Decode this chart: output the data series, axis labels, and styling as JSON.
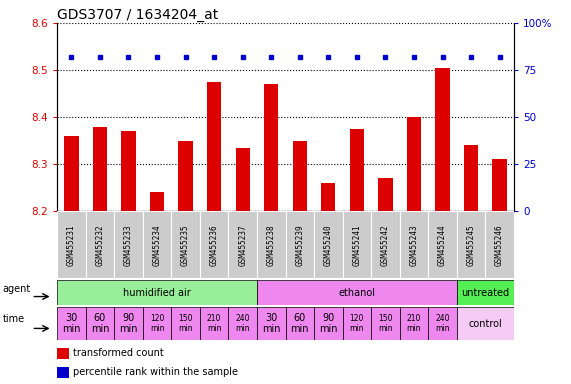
{
  "title": "GDS3707 / 1634204_at",
  "samples": [
    "GSM455231",
    "GSM455232",
    "GSM455233",
    "GSM455234",
    "GSM455235",
    "GSM455236",
    "GSM455237",
    "GSM455238",
    "GSM455239",
    "GSM455240",
    "GSM455241",
    "GSM455242",
    "GSM455243",
    "GSM455244",
    "GSM455245",
    "GSM455246"
  ],
  "bar_values": [
    8.36,
    8.38,
    8.37,
    8.24,
    8.35,
    8.475,
    8.335,
    8.47,
    8.35,
    8.26,
    8.375,
    8.27,
    8.4,
    8.505,
    8.34,
    8.31
  ],
  "percentile_values": [
    82,
    82,
    82,
    82,
    82,
    82,
    82,
    82,
    82,
    82,
    82,
    82,
    82,
    82,
    82,
    82
  ],
  "bar_color": "#dd0000",
  "percentile_color": "#0000cc",
  "ylim_left": [
    8.2,
    8.6
  ],
  "ylim_right": [
    0,
    100
  ],
  "yticks_left": [
    8.2,
    8.3,
    8.4,
    8.5,
    8.6
  ],
  "yticks_right": [
    0,
    25,
    50,
    75,
    100
  ],
  "agent_groups": [
    {
      "label": "humidified air",
      "start": 0,
      "end": 7,
      "color": "#99ee99"
    },
    {
      "label": "ethanol",
      "start": 7,
      "end": 14,
      "color": "#ee88ee"
    },
    {
      "label": "untreated",
      "start": 14,
      "end": 16,
      "color": "#55ee55"
    }
  ],
  "time_labels": [
    "30\nmin",
    "60\nmin",
    "90\nmin",
    "120\nmin",
    "150\nmin",
    "210\nmin",
    "240\nmin",
    "30\nmin",
    "60\nmin",
    "90\nmin",
    "120\nmin",
    "150\nmin",
    "210\nmin",
    "240\nmin"
  ],
  "time_large_indices": [
    0,
    1,
    2,
    7,
    8,
    9
  ],
  "time_bg_color": "#ee88ee",
  "time_control_label": "control",
  "control_bg_color": "#f5ccf5",
  "agent_label": "agent",
  "time_label": "time",
  "legend_bar_label": "transformed count",
  "legend_pct_label": "percentile rank within the sample",
  "bar_bottom": 8.2,
  "sample_box_color": "#cccccc",
  "title_fontsize": 10,
  "tick_fontsize": 7.5,
  "label_fontsize": 7
}
